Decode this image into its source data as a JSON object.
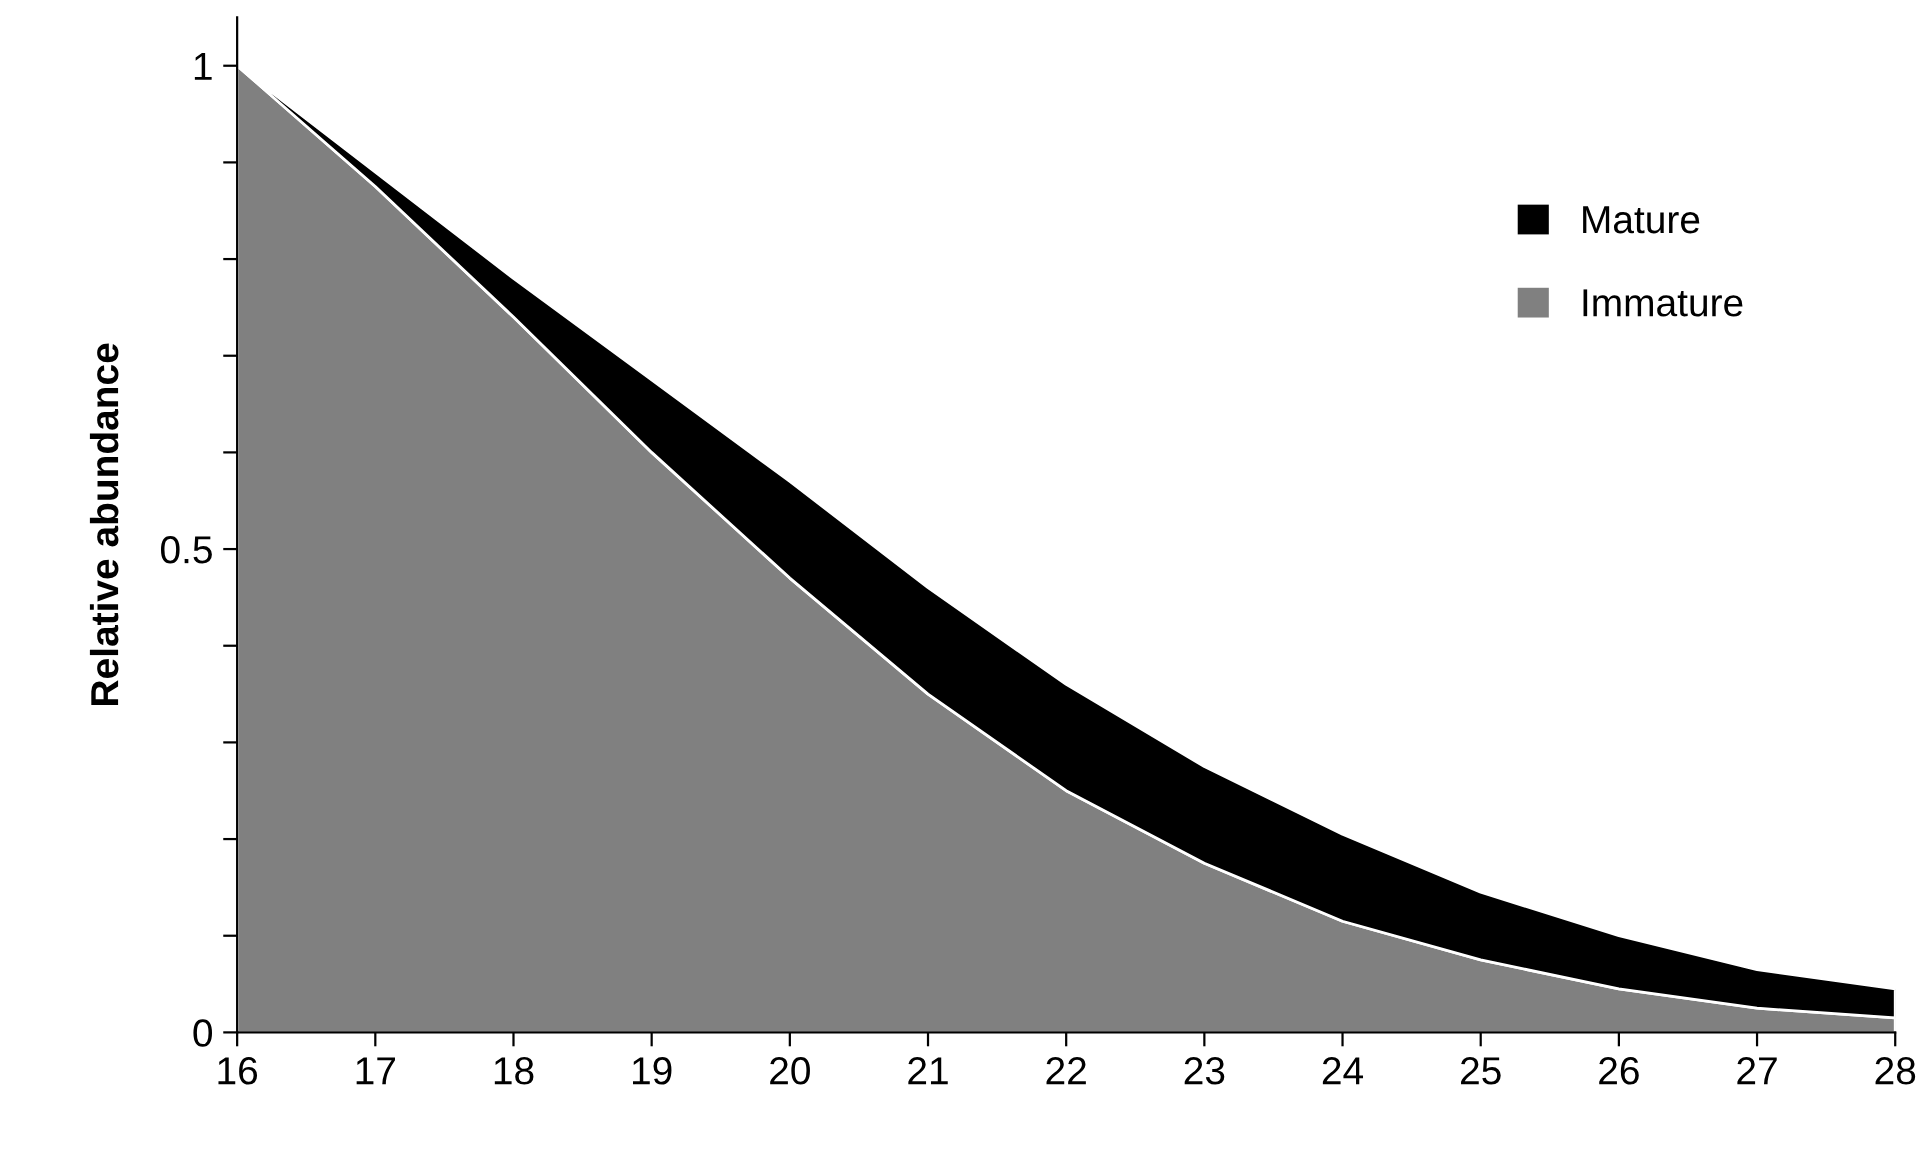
{
  "chart_data": {
    "type": "area",
    "stacked": true,
    "ylabel": "Relative abundance",
    "x": [
      16,
      17,
      18,
      19,
      20,
      21,
      22,
      23,
      24,
      25,
      26,
      27,
      28
    ],
    "series": [
      {
        "name": "Immature",
        "color": "#808080",
        "values": [
          1.0,
          0.875,
          0.74,
          0.6,
          0.47,
          0.35,
          0.25,
          0.175,
          0.115,
          0.075,
          0.045,
          0.025,
          0.015
        ]
      },
      {
        "name": "Mature",
        "color": "#000000",
        "values": [
          0,
          0.015,
          0.04,
          0.075,
          0.1,
          0.11,
          0.11,
          0.1,
          0.09,
          0.07,
          0.055,
          0.04,
          0.03
        ]
      }
    ],
    "xlim": [
      16,
      28
    ],
    "xticks": [
      16,
      17,
      18,
      19,
      20,
      21,
      22,
      23,
      24,
      25,
      26,
      27,
      28
    ],
    "ylim": [
      0,
      1.05
    ],
    "yticks": [
      0,
      {
        "value": 0.1,
        "label": null
      },
      {
        "value": 0.2,
        "label": null
      },
      {
        "value": 0.3,
        "label": null
      },
      {
        "value": 0.4,
        "label": null
      },
      0.5,
      {
        "value": 0.6,
        "label": null
      },
      {
        "value": 0.7,
        "label": null
      },
      {
        "value": 0.8,
        "label": null
      },
      {
        "value": 0.9,
        "label": null
      },
      1
    ],
    "grid": false,
    "legend": "top right"
  }
}
